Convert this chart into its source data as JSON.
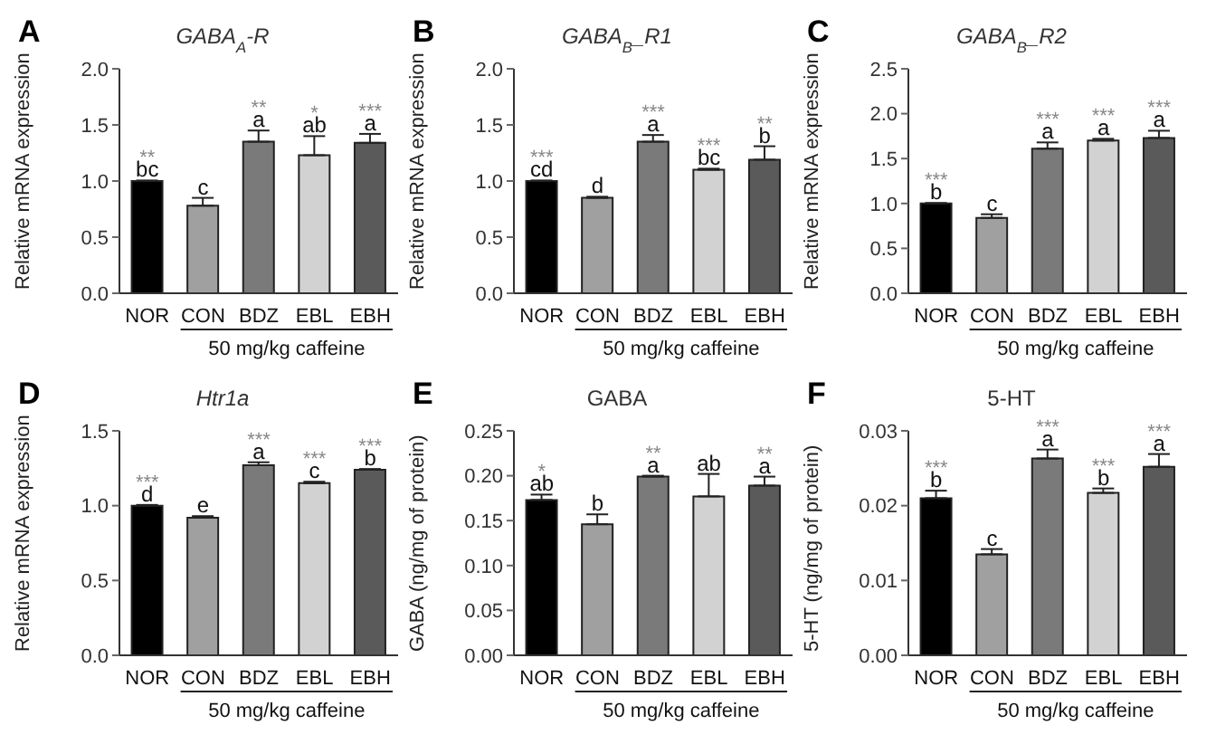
{
  "chart_data": [
    {
      "type": "bar",
      "title": "GABA$_{A}$-R",
      "ylabel": "Relative mRNA expression",
      "annotations": [
        "A",
        "50 mg/kg caffeine"
      ],
      "categories": [
        "NOR",
        "CON",
        "BDZ",
        "EBL",
        "EBH"
      ],
      "values": [
        1.0,
        0.78,
        1.35,
        1.23,
        1.34
      ],
      "errors": [
        0.005,
        0.07,
        0.1,
        0.17,
        0.08
      ],
      "colors": [
        "#000000",
        "#a0a0a0",
        "#7a7a7a",
        "#d2d2d2",
        "#5a5a5a"
      ],
      "value_labels": [
        "**\nbc",
        "c",
        "**\na",
        "*\nab",
        "***\na"
      ],
      "ylim": [
        0,
        2
      ],
      "yticks": [
        {
          "value": 0,
          "label": "0.0"
        },
        0.5,
        {
          "value": 1,
          "label": "1.0"
        },
        1.5,
        {
          "value": 2,
          "label": "2.0"
        }
      ]
    },
    {
      "type": "bar",
      "title": "GABA$_{B}$_R1",
      "ylabel": "Relative mRNA expression",
      "annotations": [
        "B",
        "50 mg/kg caffeine"
      ],
      "categories": [
        "NOR",
        "CON",
        "BDZ",
        "EBL",
        "EBH"
      ],
      "values": [
        1.0,
        0.85,
        1.35,
        1.1,
        1.19
      ],
      "errors": [
        0.005,
        0.01,
        0.06,
        0.01,
        0.12
      ],
      "colors": [
        "#000000",
        "#a0a0a0",
        "#7a7a7a",
        "#d2d2d2",
        "#5a5a5a"
      ],
      "value_labels": [
        "***\ncd",
        "d",
        "***\na",
        "***\nbc",
        "**\nb"
      ],
      "ylim": [
        0,
        2
      ],
      "yticks": [
        {
          "value": 0,
          "label": "0.0"
        },
        0.5,
        {
          "value": 1,
          "label": "1.0"
        },
        1.5,
        {
          "value": 2,
          "label": "2.0"
        }
      ]
    },
    {
      "type": "bar",
      "title": "GABA$_{B}$_R2",
      "ylabel": "Relative mRNA expression",
      "annotations": [
        "C",
        "50 mg/kg caffeine"
      ],
      "categories": [
        "NOR",
        "CON",
        "BDZ",
        "EBL",
        "EBH"
      ],
      "values": [
        1.0,
        0.84,
        1.61,
        1.7,
        1.73
      ],
      "errors": [
        0.005,
        0.04,
        0.07,
        0.02,
        0.08
      ],
      "colors": [
        "#000000",
        "#a0a0a0",
        "#7a7a7a",
        "#d2d2d2",
        "#5a5a5a"
      ],
      "value_labels": [
        "***\nb",
        "c",
        "***\na",
        "***\na",
        "***\na"
      ],
      "ylim": [
        0,
        2.5
      ],
      "yticks": [
        {
          "value": 0,
          "label": "0.0"
        },
        0.5,
        {
          "value": 1,
          "label": "1.0"
        },
        1.5,
        {
          "value": 2,
          "label": "2.0"
        },
        2.5
      ]
    },
    {
      "type": "bar",
      "title": "Htr1a",
      "ylabel": "Relative mRNA expression",
      "annotations": [
        "D",
        "50 mg/kg caffeine"
      ],
      "categories": [
        "NOR",
        "CON",
        "BDZ",
        "EBL",
        "EBH"
      ],
      "values": [
        1.0,
        0.92,
        1.27,
        1.15,
        1.24
      ],
      "errors": [
        0.005,
        0.01,
        0.02,
        0.01,
        0.005
      ],
      "colors": [
        "#000000",
        "#a0a0a0",
        "#7a7a7a",
        "#d2d2d2",
        "#5a5a5a"
      ],
      "value_labels": [
        "***\nd",
        "e",
        "***\na",
        "***\nc",
        "***\nb"
      ],
      "ylim": [
        0,
        1.5
      ],
      "yticks": [
        {
          "value": 0,
          "label": "0.0"
        },
        0.5,
        {
          "value": 1,
          "label": "1.0"
        },
        1.5
      ]
    },
    {
      "type": "bar",
      "title": "GABA",
      "ylabel": "GABA (ng/mg of protein)",
      "annotations": [
        "E",
        "50 mg/kg caffeine"
      ],
      "categories": [
        "NOR",
        "CON",
        "BDZ",
        "EBL",
        "EBH"
      ],
      "values": [
        0.173,
        0.146,
        0.199,
        0.177,
        0.189
      ],
      "errors": [
        0.006,
        0.011,
        0.001,
        0.025,
        0.01
      ],
      "colors": [
        "#000000",
        "#a0a0a0",
        "#7a7a7a",
        "#d2d2d2",
        "#5a5a5a"
      ],
      "value_labels": [
        "*\nab",
        "b",
        "**\na",
        "ab",
        "**\na"
      ],
      "ylim": [
        0,
        0.25
      ],
      "yticks": [
        {
          "value": 0,
          "label": "0.00"
        },
        0.05,
        {
          "value": 0.1,
          "label": "0.10"
        },
        0.15,
        {
          "value": 0.2,
          "label": "0.20"
        },
        0.25
      ]
    },
    {
      "type": "bar",
      "title": "5-HT",
      "ylabel": "5-HT (ng/mg of protein)",
      "annotations": [
        "F",
        "50 mg/kg caffeine"
      ],
      "categories": [
        "NOR",
        "CON",
        "BDZ",
        "EBL",
        "EBH"
      ],
      "values": [
        0.021,
        0.0135,
        0.0263,
        0.0217,
        0.0252
      ],
      "errors": [
        0.001,
        0.0007,
        0.0012,
        0.0006,
        0.0017
      ],
      "colors": [
        "#000000",
        "#a0a0a0",
        "#7a7a7a",
        "#d2d2d2",
        "#5a5a5a"
      ],
      "value_labels": [
        "***\nb",
        "c",
        "***\na",
        "***\nb",
        "***\na"
      ],
      "ylim": [
        0,
        0.03
      ],
      "yticks": [
        {
          "value": 0,
          "label": "0.00"
        },
        0.01,
        0.02,
        0.03
      ]
    }
  ]
}
